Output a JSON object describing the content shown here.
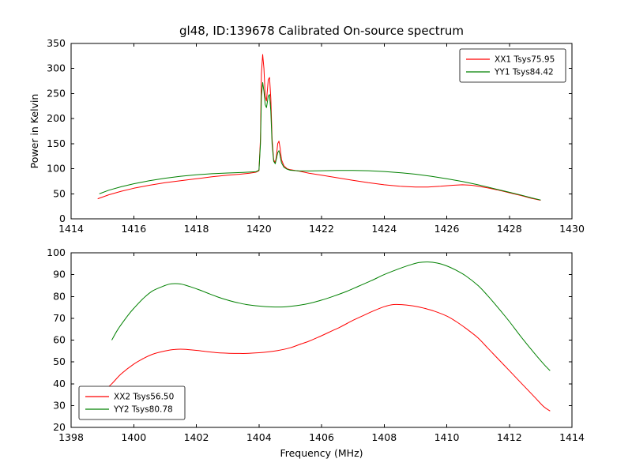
{
  "figure": {
    "title": "gl48, ID:139678 Calibrated On-source spectrum",
    "background": "#ffffff"
  },
  "chart_data": [
    {
      "type": "line",
      "title": "gl48, ID:139678 Calibrated On-source spectrum",
      "xlabel": "",
      "ylabel": "Power in Kelvin",
      "xlim": [
        1414,
        1430
      ],
      "ylim": [
        0,
        350
      ],
      "xticks": [
        1414,
        1416,
        1418,
        1420,
        1422,
        1424,
        1426,
        1428,
        1430
      ],
      "yticks": [
        0,
        50,
        100,
        150,
        200,
        250,
        300,
        350
      ],
      "grid": false,
      "legend": {
        "position": "top-right"
      },
      "series": [
        {
          "name": "XX1 Tsys75.95",
          "color": "#ff0000",
          "smooth": false,
          "points": [
            [
              1414.85,
              40
            ],
            [
              1415.2,
              48
            ],
            [
              1415.6,
              55
            ],
            [
              1416,
              61
            ],
            [
              1416.5,
              67
            ],
            [
              1417,
              72
            ],
            [
              1417.5,
              76
            ],
            [
              1418,
              80
            ],
            [
              1418.5,
              84
            ],
            [
              1419,
              87
            ],
            [
              1419.4,
              89
            ],
            [
              1419.7,
              91
            ],
            [
              1419.9,
              93
            ],
            [
              1420.0,
              96
            ],
            [
              1420.05,
              160
            ],
            [
              1420.08,
              290
            ],
            [
              1420.12,
              328
            ],
            [
              1420.16,
              300
            ],
            [
              1420.2,
              245
            ],
            [
              1420.24,
              235
            ],
            [
              1420.3,
              278
            ],
            [
              1420.34,
              282
            ],
            [
              1420.38,
              240
            ],
            [
              1420.42,
              160
            ],
            [
              1420.47,
              118
            ],
            [
              1420.52,
              112
            ],
            [
              1420.56,
              125
            ],
            [
              1420.6,
              150
            ],
            [
              1420.64,
              155
            ],
            [
              1420.68,
              140
            ],
            [
              1420.72,
              118
            ],
            [
              1420.8,
              106
            ],
            [
              1420.9,
              100
            ],
            [
              1421,
              98
            ],
            [
              1421.3,
              95
            ],
            [
              1421.6,
              91
            ],
            [
              1422,
              87
            ],
            [
              1422.5,
              82
            ],
            [
              1423,
              77
            ],
            [
              1423.5,
              72
            ],
            [
              1424,
              68
            ],
            [
              1424.5,
              65
            ],
            [
              1425,
              63.5
            ],
            [
              1425.4,
              63.5
            ],
            [
              1425.8,
              65
            ],
            [
              1426.2,
              67
            ],
            [
              1426.5,
              68
            ],
            [
              1426.8,
              67
            ],
            [
              1427,
              65
            ],
            [
              1427.3,
              62
            ],
            [
              1427.6,
              58
            ],
            [
              1428,
              52
            ],
            [
              1428.4,
              46
            ],
            [
              1428.7,
              41
            ],
            [
              1429,
              37
            ]
          ]
        },
        {
          "name": "YY1 Tsys84.42",
          "color": "#008000",
          "smooth": false,
          "points": [
            [
              1414.9,
              50
            ],
            [
              1415.2,
              57
            ],
            [
              1415.6,
              64
            ],
            [
              1416,
              70
            ],
            [
              1416.5,
              76
            ],
            [
              1417,
              81
            ],
            [
              1417.5,
              85
            ],
            [
              1418,
              88
            ],
            [
              1418.5,
              90
            ],
            [
              1419,
              91.5
            ],
            [
              1419.5,
              92.5
            ],
            [
              1419.9,
              94
            ],
            [
              1420.0,
              97
            ],
            [
              1420.05,
              150
            ],
            [
              1420.08,
              245
            ],
            [
              1420.12,
              272
            ],
            [
              1420.16,
              255
            ],
            [
              1420.2,
              228
            ],
            [
              1420.24,
              222
            ],
            [
              1420.3,
              245
            ],
            [
              1420.34,
              248
            ],
            [
              1420.38,
              215
            ],
            [
              1420.42,
              150
            ],
            [
              1420.47,
              115
            ],
            [
              1420.52,
              110
            ],
            [
              1420.56,
              120
            ],
            [
              1420.6,
              132
            ],
            [
              1420.64,
              136
            ],
            [
              1420.68,
              125
            ],
            [
              1420.72,
              112
            ],
            [
              1420.8,
              103
            ],
            [
              1420.9,
              99
            ],
            [
              1421,
              97
            ],
            [
              1421.3,
              95.5
            ],
            [
              1421.6,
              95.5
            ],
            [
              1422,
              96
            ],
            [
              1422.5,
              96.5
            ],
            [
              1423,
              96.5
            ],
            [
              1423.5,
              96
            ],
            [
              1424,
              94.5
            ],
            [
              1424.5,
              92
            ],
            [
              1425,
              89
            ],
            [
              1425.5,
              85
            ],
            [
              1426,
              80
            ],
            [
              1426.5,
              74.5
            ],
            [
              1427,
              68
            ],
            [
              1427.3,
              63.5
            ],
            [
              1427.6,
              59
            ],
            [
              1428,
              53
            ],
            [
              1428.4,
              47
            ],
            [
              1428.7,
              42
            ],
            [
              1429,
              37.5
            ]
          ]
        }
      ]
    },
    {
      "type": "line",
      "title": "",
      "xlabel": "Frequency (MHz)",
      "ylabel": "",
      "xlim": [
        1398,
        1414
      ],
      "ylim": [
        20,
        100
      ],
      "xticks": [
        1398,
        1400,
        1402,
        1404,
        1406,
        1408,
        1410,
        1412,
        1414
      ],
      "yticks": [
        20,
        30,
        40,
        50,
        60,
        70,
        80,
        90,
        100
      ],
      "grid": false,
      "legend": {
        "position": "bottom-left"
      },
      "series": [
        {
          "name": "XX2 Tsys56.50",
          "color": "#ff0000",
          "smooth": true,
          "points": [
            [
              1399,
              36
            ],
            [
              1399.3,
              40
            ],
            [
              1399.6,
              44.5
            ],
            [
              1400,
              49
            ],
            [
              1400.3,
              51.5
            ],
            [
              1400.6,
              53.5
            ],
            [
              1401,
              55
            ],
            [
              1401.3,
              55.7
            ],
            [
              1401.6,
              55.8
            ],
            [
              1402,
              55.3
            ],
            [
              1402.3,
              54.8
            ],
            [
              1402.6,
              54.3
            ],
            [
              1403,
              54
            ],
            [
              1403.3,
              53.9
            ],
            [
              1403.6,
              53.9
            ],
            [
              1404,
              54.2
            ],
            [
              1404.3,
              54.6
            ],
            [
              1404.6,
              55.2
            ],
            [
              1405,
              56.5
            ],
            [
              1405.3,
              58
            ],
            [
              1405.6,
              59.5
            ],
            [
              1406,
              62
            ],
            [
              1406.3,
              64
            ],
            [
              1406.6,
              66
            ],
            [
              1407,
              69
            ],
            [
              1407.3,
              71
            ],
            [
              1407.6,
              73
            ],
            [
              1408,
              75.3
            ],
            [
              1408.3,
              76.3
            ],
            [
              1408.6,
              76.2
            ],
            [
              1409,
              75.5
            ],
            [
              1409.3,
              74.5
            ],
            [
              1409.6,
              73.3
            ],
            [
              1410,
              71
            ],
            [
              1410.3,
              68.5
            ],
            [
              1410.6,
              65.5
            ],
            [
              1411,
              61
            ],
            [
              1411.3,
              56.5
            ],
            [
              1411.6,
              52
            ],
            [
              1412,
              46
            ],
            [
              1412.4,
              40
            ],
            [
              1412.8,
              34
            ],
            [
              1413.1,
              29.5
            ],
            [
              1413.3,
              27.5
            ]
          ]
        },
        {
          "name": "YY2 Tsys80.78",
          "color": "#008000",
          "smooth": true,
          "points": [
            [
              1399.3,
              60
            ],
            [
              1399.5,
              65
            ],
            [
              1399.8,
              71
            ],
            [
              1400,
              74.5
            ],
            [
              1400.3,
              79
            ],
            [
              1400.6,
              82.5
            ],
            [
              1401,
              85
            ],
            [
              1401.2,
              85.8
            ],
            [
              1401.5,
              85.7
            ],
            [
              1401.8,
              84.5
            ],
            [
              1402.1,
              83
            ],
            [
              1402.4,
              81.3
            ],
            [
              1402.7,
              79.7
            ],
            [
              1403,
              78.3
            ],
            [
              1403.3,
              77.2
            ],
            [
              1403.6,
              76.3
            ],
            [
              1404,
              75.6
            ],
            [
              1404.4,
              75.2
            ],
            [
              1404.8,
              75.2
            ],
            [
              1405.2,
              75.8
            ],
            [
              1405.6,
              76.8
            ],
            [
              1406,
              78.3
            ],
            [
              1406.4,
              80.2
            ],
            [
              1406.8,
              82.3
            ],
            [
              1407.2,
              84.8
            ],
            [
              1407.6,
              87.3
            ],
            [
              1408,
              90
            ],
            [
              1408.4,
              92.3
            ],
            [
              1408.8,
              94.3
            ],
            [
              1409.1,
              95.5
            ],
            [
              1409.4,
              95.8
            ],
            [
              1409.7,
              95.3
            ],
            [
              1410,
              94
            ],
            [
              1410.3,
              92
            ],
            [
              1410.6,
              89.5
            ],
            [
              1411,
              85
            ],
            [
              1411.3,
              80.5
            ],
            [
              1411.6,
              75.5
            ],
            [
              1412,
              68.5
            ],
            [
              1412.4,
              61
            ],
            [
              1412.8,
              54
            ],
            [
              1413.1,
              49
            ],
            [
              1413.3,
              46
            ]
          ]
        }
      ]
    }
  ]
}
